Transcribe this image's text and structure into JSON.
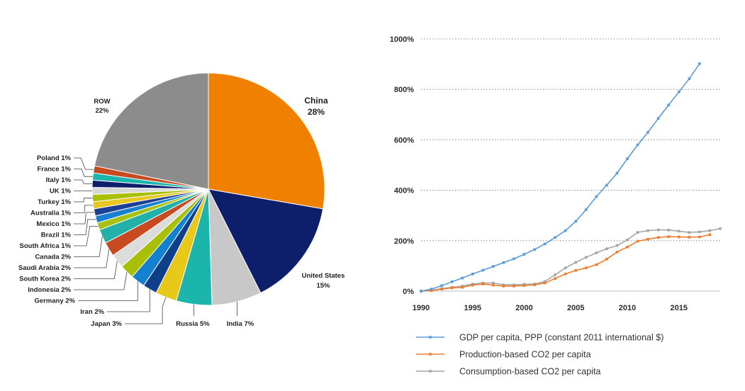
{
  "chart_data": [
    {
      "type": "pie",
      "slices": [
        {
          "name": "China",
          "label": "28%",
          "value": 28,
          "color": "#ef8000"
        },
        {
          "name": "United States",
          "label": "15%",
          "value": 15,
          "color": "#0d1f6b"
        },
        {
          "name": "India",
          "label": "India 7%",
          "value": 7,
          "color": "#c8c8c8"
        },
        {
          "name": "Russia",
          "label": "Russia 5%",
          "value": 5,
          "color": "#1bb5ac"
        },
        {
          "name": "Japan",
          "label": "Japan  3%",
          "value": 3,
          "color": "#e8c818"
        },
        {
          "name": "Iran",
          "label": "Iran 2%",
          "value": 2,
          "color": "#0f3f8a"
        },
        {
          "name": "Germany",
          "label": "Germany 2%",
          "value": 2,
          "color": "#1380d0"
        },
        {
          "name": "Indonesia",
          "label": "Indonesia 2%",
          "value": 2,
          "color": "#a8c000"
        },
        {
          "name": "South Korea",
          "label": "South Korea 2%",
          "value": 2,
          "color": "#dcdcdc"
        },
        {
          "name": "Saudi Arabia",
          "label": "Saudi Arabia 2%",
          "value": 2,
          "color": "#c84a20"
        },
        {
          "name": "Canada",
          "label": "Canada 2%",
          "value": 2,
          "color": "#22b0a8"
        },
        {
          "name": "South Africa",
          "label": "South Africa 1%",
          "value": 1,
          "color": "#a8c010"
        },
        {
          "name": "Brazil",
          "label": "Brazil 1%",
          "value": 1,
          "color": "#1880d0"
        },
        {
          "name": "Mexico",
          "label": "Mexico 1%",
          "value": 1,
          "color": "#1e3f96"
        },
        {
          "name": "Australia",
          "label": "Australia 1%",
          "value": 1,
          "color": "#e8c820"
        },
        {
          "name": "Turkey",
          "label": "Turkey 1%",
          "value": 1,
          "color": "#a8c000"
        },
        {
          "name": "UK",
          "label": "UK 1%",
          "value": 1,
          "color": "#d8d8d8"
        },
        {
          "name": "Italy",
          "label": "Italy 1%",
          "value": 1,
          "color": "#0d1f6b"
        },
        {
          "name": "France",
          "label": "France 1%",
          "value": 1,
          "color": "#1bb5ac"
        },
        {
          "name": "Poland",
          "label": "Poland 1%",
          "value": 1,
          "color": "#c84a20"
        },
        {
          "name": "ROW",
          "label": "22%",
          "value": 22,
          "color": "#8c8c8c"
        }
      ]
    },
    {
      "type": "line",
      "x": [
        1990,
        1991,
        1992,
        1993,
        1994,
        1995,
        1996,
        1997,
        1998,
        1999,
        2000,
        2001,
        2002,
        2003,
        2004,
        2005,
        2006,
        2007,
        2008,
        2009,
        2010,
        2011,
        2012,
        2013,
        2014,
        2015,
        2016,
        2017,
        2018,
        2019
      ],
      "ylim": [
        0,
        1000
      ],
      "xlim": [
        1990,
        2019
      ],
      "yticks": [
        "0%",
        "200%",
        "400%",
        "600%",
        "800%",
        "1000%"
      ],
      "ytick_values": [
        0,
        200,
        400,
        600,
        800,
        1000
      ],
      "xticks": [
        "1990",
        "1995",
        "2000",
        "2005",
        "2010",
        "2015"
      ],
      "xtick_values": [
        1990,
        1995,
        2000,
        2005,
        2010,
        2015
      ],
      "grid": true,
      "legend_position": "bottom",
      "series": [
        {
          "name": "GDP per capita, PPP (constant 2011 international $)",
          "color": "#5b9bd5",
          "values": [
            0,
            8,
            22,
            37,
            52,
            68,
            83,
            98,
            113,
            128,
            146,
            165,
            187,
            213,
            240,
            277,
            323,
            375,
            420,
            468,
            525,
            580,
            630,
            685,
            738,
            790,
            842,
            902,
            null,
            null
          ]
        },
        {
          "name": "Production-based CO2 per capita",
          "color": "#ed7d31",
          "values": [
            0,
            2,
            8,
            13,
            15,
            24,
            28,
            24,
            20,
            20,
            22,
            25,
            32,
            50,
            68,
            82,
            92,
            105,
            127,
            155,
            175,
            198,
            206,
            213,
            216,
            215,
            214,
            215,
            224,
            null
          ]
        },
        {
          "name": "Consumption-based CO2 per capita",
          "color": "#a5a5a5",
          "values": [
            0,
            3,
            10,
            15,
            20,
            28,
            32,
            32,
            25,
            25,
            27,
            28,
            38,
            65,
            92,
            114,
            134,
            152,
            168,
            181,
            203,
            233,
            240,
            243,
            242,
            238,
            233,
            235,
            240,
            248
          ]
        }
      ]
    }
  ]
}
